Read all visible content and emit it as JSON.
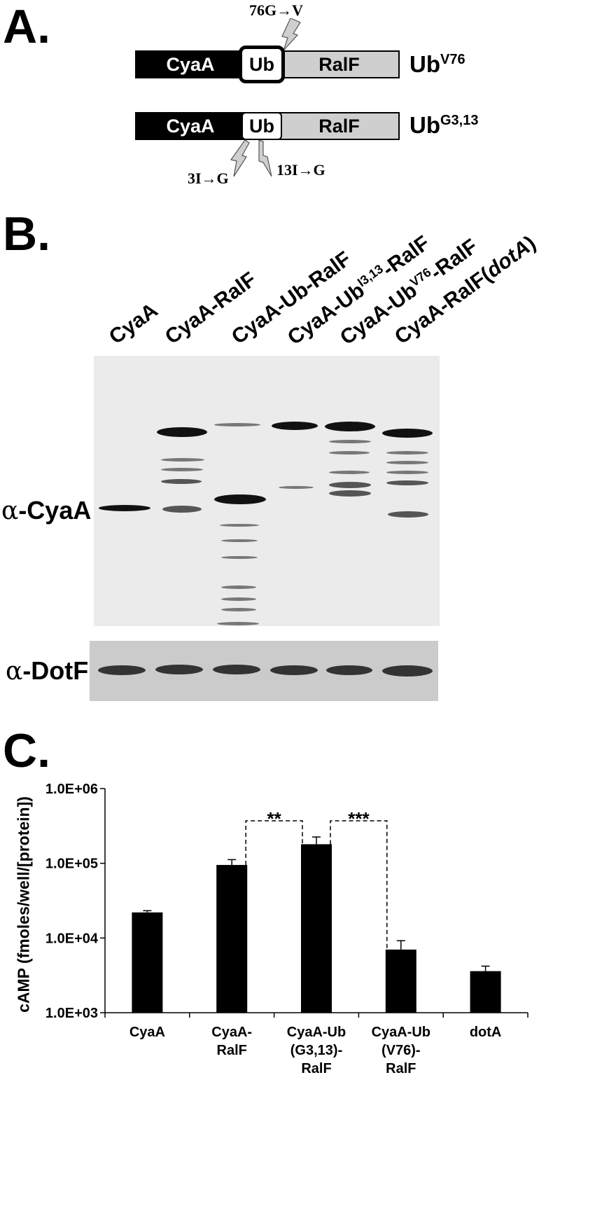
{
  "panel_a": {
    "letter": "A.",
    "construct_1": {
      "cyaa": "CyaA",
      "ub": "Ub",
      "ralf": "RalF",
      "label_base": "Ub",
      "label_sup": "V76",
      "mutation": "76G→V"
    },
    "construct_2": {
      "cyaa": "CyaA",
      "ub": "Ub",
      "ralf": "RalF",
      "label_base": "Ub",
      "label_sup": "G3,13",
      "mutation_left": "3I→G",
      "mutation_right": "13I→G"
    }
  },
  "panel_b": {
    "letter": "B.",
    "lanes": [
      {
        "base": "CyaA",
        "sup": "",
        "suffix": "",
        "italic": "",
        "close": ""
      },
      {
        "base": "CyaA-RalF",
        "sup": "",
        "suffix": "",
        "italic": "",
        "close": ""
      },
      {
        "base": "CyaA-Ub-RalF",
        "sup": "",
        "suffix": "",
        "italic": "",
        "close": ""
      },
      {
        "base": "CyaA-Ub",
        "sup": "I3,13",
        "suffix": "-RalF",
        "italic": "",
        "close": ""
      },
      {
        "base": "CyaA-Ub",
        "sup": "V76",
        "suffix": "-RalF",
        "italic": "",
        "close": ""
      },
      {
        "base": "CyaA-RalF(",
        "sup": "",
        "suffix": "",
        "italic": "dotA",
        "close": ")"
      }
    ],
    "blot_label_top": {
      "alpha": "α",
      "text": "-CyaA"
    },
    "blot_label_bottom": {
      "alpha": "α",
      "text": "-DotF"
    }
  },
  "panel_c": {
    "letter": "C."
  },
  "chart_data": {
    "type": "bar",
    "scale": "log",
    "ylabel": "cAMP (fmoles/well/[protein])",
    "ylim": [
      1000,
      1000000
    ],
    "yticks": [
      1000,
      10000,
      100000,
      1000000
    ],
    "ytick_labels": [
      "1.0E+03",
      "1.0E+04",
      "1.0E+05",
      "1.0E+06"
    ],
    "categories": [
      [
        "CyaA"
      ],
      [
        "CyaA-",
        "RalF"
      ],
      [
        "CyaA-Ub",
        "(G3,13)-",
        "RalF"
      ],
      [
        "CyaA-Ub",
        "(V76)-",
        "RalF"
      ],
      [
        "dotA"
      ]
    ],
    "values": [
      22000,
      95000,
      180000,
      7000,
      3600
    ],
    "errors": [
      1200,
      17000,
      45000,
      2200,
      600
    ],
    "bar_color": "#000000",
    "significance": [
      {
        "from": 1,
        "to": 2,
        "label": "**"
      },
      {
        "from": 2,
        "to": 3,
        "label": "***"
      }
    ]
  }
}
